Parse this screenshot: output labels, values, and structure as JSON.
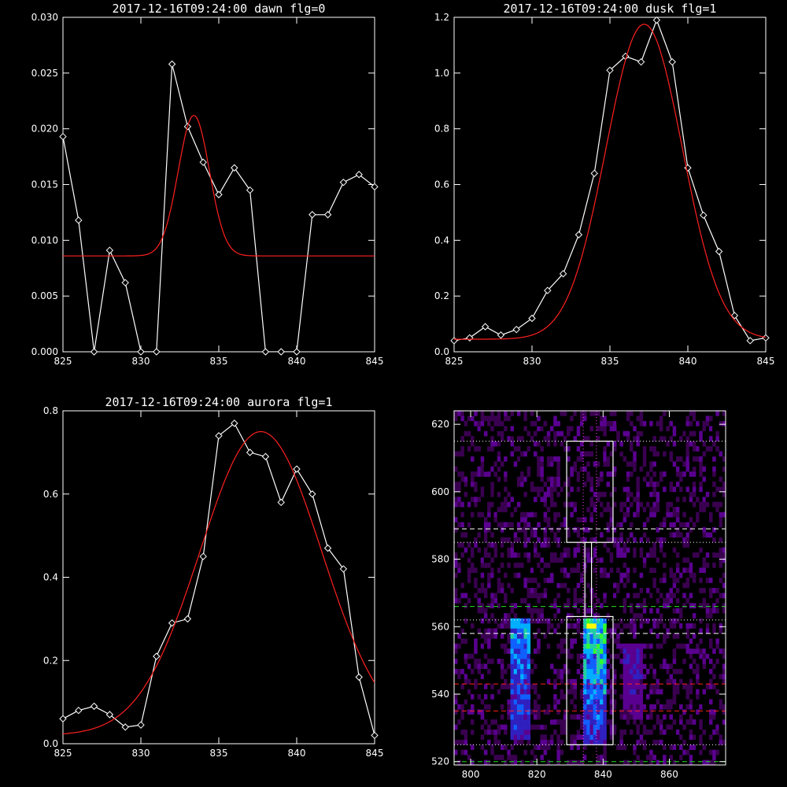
{
  "chart_data": [
    {
      "type": "line",
      "title": "2017-12-16T09:24:00 dawn flg=0",
      "xlim": [
        825,
        845
      ],
      "ylim": [
        0,
        0.03
      ],
      "xticks": [
        "825",
        "830",
        "835",
        "840",
        "845"
      ],
      "yticks": [
        "0.000",
        "0.005",
        "0.010",
        "0.015",
        "0.020",
        "0.025",
        "0.030"
      ],
      "series": [
        {
          "color": "#ffffff",
          "marker": "diamond",
          "x": [
            825,
            826,
            827,
            828,
            829,
            830,
            831,
            832,
            833,
            834,
            835,
            836,
            837,
            838,
            839,
            840,
            841,
            842,
            843,
            844,
            845
          ],
          "y": [
            0.0193,
            0.0118,
            0.0,
            0.0091,
            0.0062,
            0.0,
            0.0,
            0.0258,
            0.0202,
            0.017,
            0.0141,
            0.0165,
            0.0145,
            0.0,
            0.0,
            0.0,
            0.0123,
            0.0123,
            0.0152,
            0.0159,
            0.0148
          ]
        },
        {
          "color": "#ff2020",
          "kind": "gauss",
          "base": 0.0086,
          "amp": 0.0126,
          "center": 833.4,
          "sigma": 1.0
        }
      ]
    },
    {
      "type": "line",
      "title": "2017-12-16T09:24:00 dusk flg=1",
      "xlim": [
        825,
        845
      ],
      "ylim": [
        0,
        1.2
      ],
      "xticks": [
        "825",
        "830",
        "835",
        "840",
        "845"
      ],
      "yticks": [
        "0.0",
        "0.2",
        "0.4",
        "0.6",
        "0.8",
        "1.0",
        "1.2"
      ],
      "series": [
        {
          "color": "#ffffff",
          "marker": "diamond",
          "x": [
            825,
            826,
            827,
            828,
            829,
            830,
            831,
            832,
            833,
            834,
            835,
            836,
            837,
            838,
            839,
            840,
            841,
            842,
            843,
            844,
            845
          ],
          "y": [
            0.04,
            0.05,
            0.09,
            0.06,
            0.08,
            0.12,
            0.22,
            0.28,
            0.42,
            0.64,
            1.01,
            1.06,
            1.04,
            1.19,
            1.04,
            0.66,
            0.49,
            0.36,
            0.13,
            0.04,
            0.05
          ]
        },
        {
          "color": "#ff2020",
          "kind": "gauss",
          "base": 0.045,
          "amp": 1.13,
          "center": 837.2,
          "sigma": 2.45
        }
      ]
    },
    {
      "type": "line",
      "title": "2017-12-16T09:24:00 aurora flg=1",
      "xlim": [
        825,
        845
      ],
      "ylim": [
        0,
        0.8
      ],
      "xticks": [
        "825",
        "830",
        "835",
        "840",
        "845"
      ],
      "yticks": [
        "0.0",
        "0.2",
        "0.4",
        "0.6",
        "0.8"
      ],
      "series": [
        {
          "color": "#ffffff",
          "marker": "diamond",
          "x": [
            825,
            826,
            827,
            828,
            829,
            830,
            831,
            832,
            833,
            834,
            835,
            836,
            837,
            838,
            839,
            840,
            841,
            842,
            843,
            844,
            845
          ],
          "y": [
            0.06,
            0.08,
            0.09,
            0.07,
            0.04,
            0.045,
            0.21,
            0.29,
            0.3,
            0.45,
            0.74,
            0.77,
            0.7,
            0.69,
            0.58,
            0.66,
            0.6,
            0.47,
            0.42,
            0.16,
            0.02
          ]
        },
        {
          "color": "#ff2020",
          "kind": "gauss",
          "base": 0.02,
          "amp": 0.73,
          "center": 837.7,
          "sigma": 3.9
        }
      ]
    },
    {
      "type": "heatmap",
      "xlim": [
        795,
        877
      ],
      "ylim": [
        519,
        624
      ],
      "xticks": [
        "800",
        "820",
        "840",
        "860"
      ],
      "yticks": [
        "520",
        "540",
        "560",
        "580",
        "600",
        "620"
      ],
      "colormap": [
        "#000000",
        "#3a0050",
        "#5a0090",
        "#3020c0",
        "#1060ff",
        "#00b0ff",
        "#20d0a0",
        "#30ff30",
        "#ffff00",
        "#ff2000"
      ],
      "bright_columns": [
        {
          "center": 837.5,
          "width": 6,
          "y": [
            525,
            563
          ],
          "peak": 566,
          "peak_value": 1.0
        },
        {
          "center": 815,
          "width": 6,
          "y": [
            527,
            562
          ],
          "peak": 560,
          "peak_value": 0.7
        },
        {
          "center": 849,
          "width": 6,
          "y": [
            532,
            555
          ],
          "peak": 550,
          "peak_value": 0.35
        }
      ],
      "boxes": [
        {
          "x": [
            829,
            843
          ],
          "y": [
            525,
            563
          ]
        },
        {
          "x": [
            829,
            843
          ],
          "y": [
            585,
            615
          ]
        },
        {
          "x": [
            834.5,
            836.5
          ],
          "y": [
            563,
            585
          ]
        }
      ],
      "dotted_h": [
        525,
        562,
        585,
        615
      ],
      "white_dashed_h": [
        558,
        589
      ],
      "red_dashed_h": [
        535,
        543
      ],
      "green_dashed_h": [
        520,
        566
      ],
      "magenta_dotted_v": [
        834,
        838
      ]
    }
  ]
}
